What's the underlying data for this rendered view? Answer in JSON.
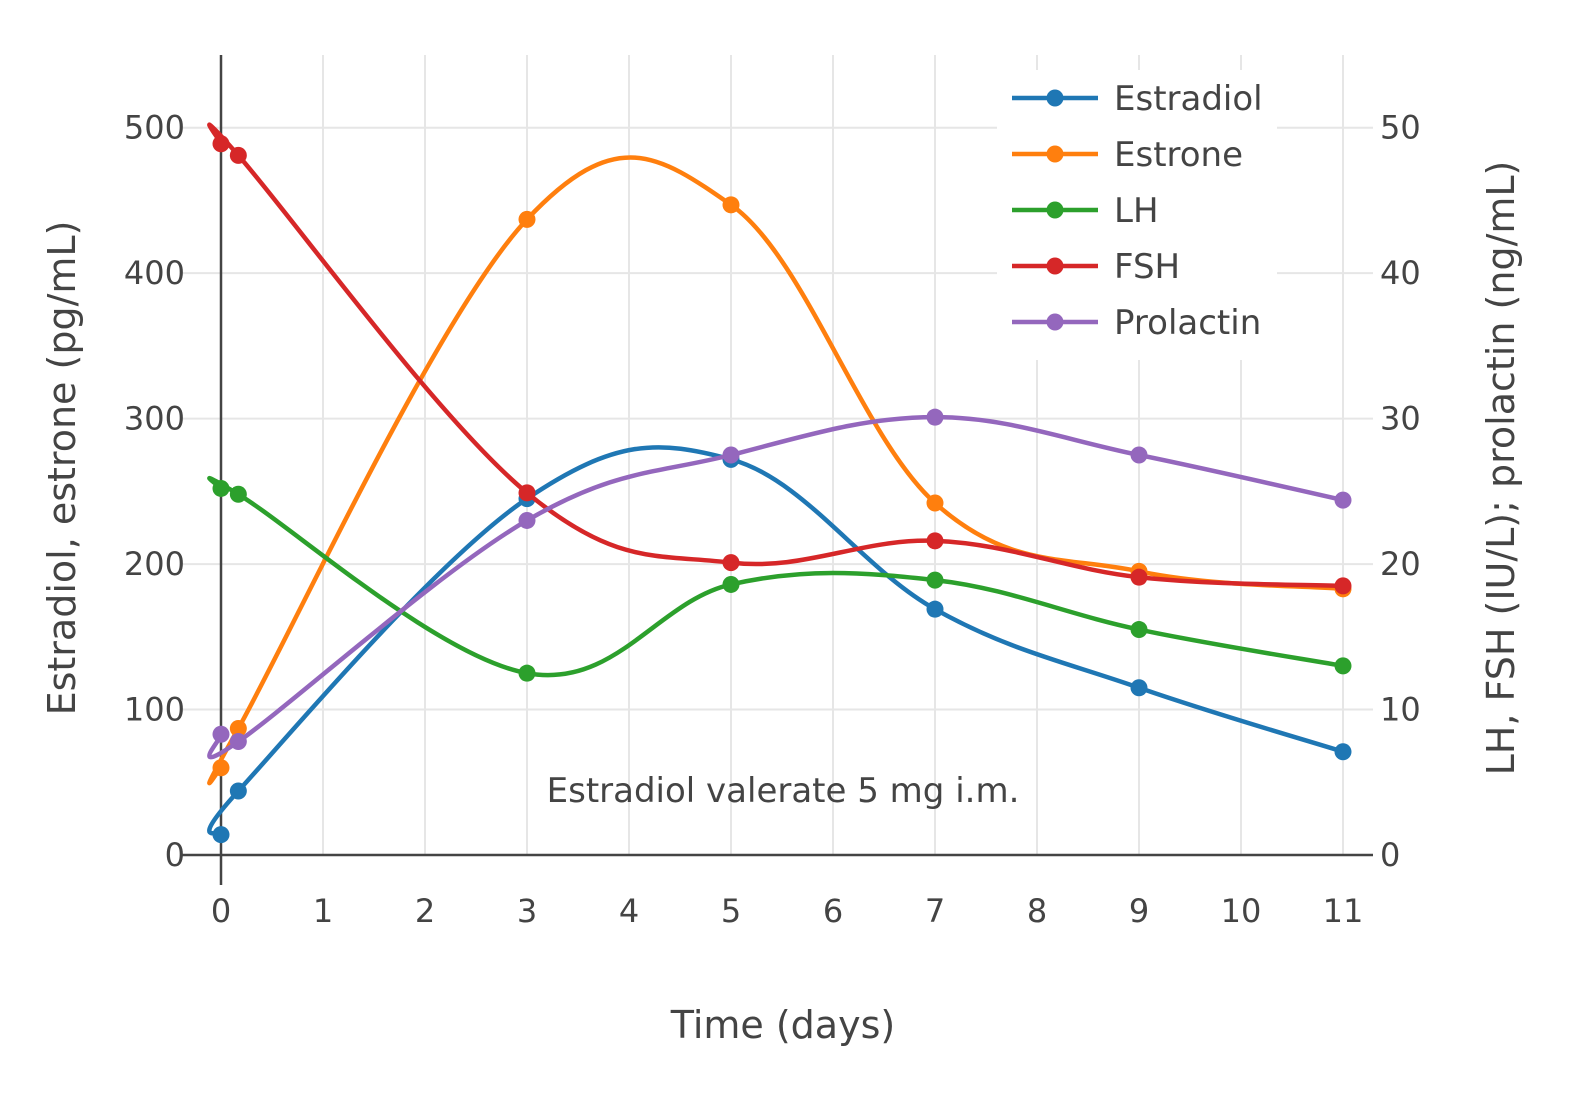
{
  "chart_data": {
    "type": "line",
    "x": [
      0,
      0.17,
      3,
      5,
      7,
      9,
      11
    ],
    "xlabel": "Time (days)",
    "ylabel": "Estradiol, estrone (pg/mL)",
    "y2label": "LH, FSH (IU/L); prolactin (ng/mL)",
    "xlim": [
      0,
      11
    ],
    "ylim": [
      0,
      550
    ],
    "y2lim": [
      0,
      55
    ],
    "xticks": [
      "0",
      "1",
      "2",
      "3",
      "4",
      "5",
      "6",
      "7",
      "8",
      "9",
      "10",
      "11"
    ],
    "yticks": [
      "0",
      "100",
      "200",
      "300",
      "400",
      "500"
    ],
    "y2ticks": [
      "0",
      "10",
      "20",
      "30",
      "40",
      "50"
    ],
    "grid": true,
    "legend_position": "top-right",
    "annotation": "Estradiol valerate 5 mg i.m.",
    "series": [
      {
        "name": "Estradiol",
        "axis": "left",
        "color": "#1f77b4",
        "values": [
          14,
          44,
          245,
          272,
          169,
          115,
          71
        ]
      },
      {
        "name": "Estrone",
        "axis": "left",
        "color": "#ff7f0e",
        "values": [
          60,
          87,
          437,
          447,
          242,
          195,
          183
        ]
      },
      {
        "name": "LH",
        "axis": "right",
        "color": "#2ca02c",
        "values": [
          25.2,
          24.8,
          12.5,
          18.6,
          18.9,
          15.5,
          13
        ]
      },
      {
        "name": "FSH",
        "axis": "right",
        "color": "#d62728",
        "values": [
          48.9,
          48.1,
          24.9,
          20.1,
          21.6,
          19.1,
          18.5
        ]
      },
      {
        "name": "Prolactin",
        "axis": "right",
        "color": "#9467bd",
        "values": [
          8.3,
          7.8,
          23,
          27.5,
          30.1,
          27.5,
          24.4
        ]
      }
    ]
  }
}
